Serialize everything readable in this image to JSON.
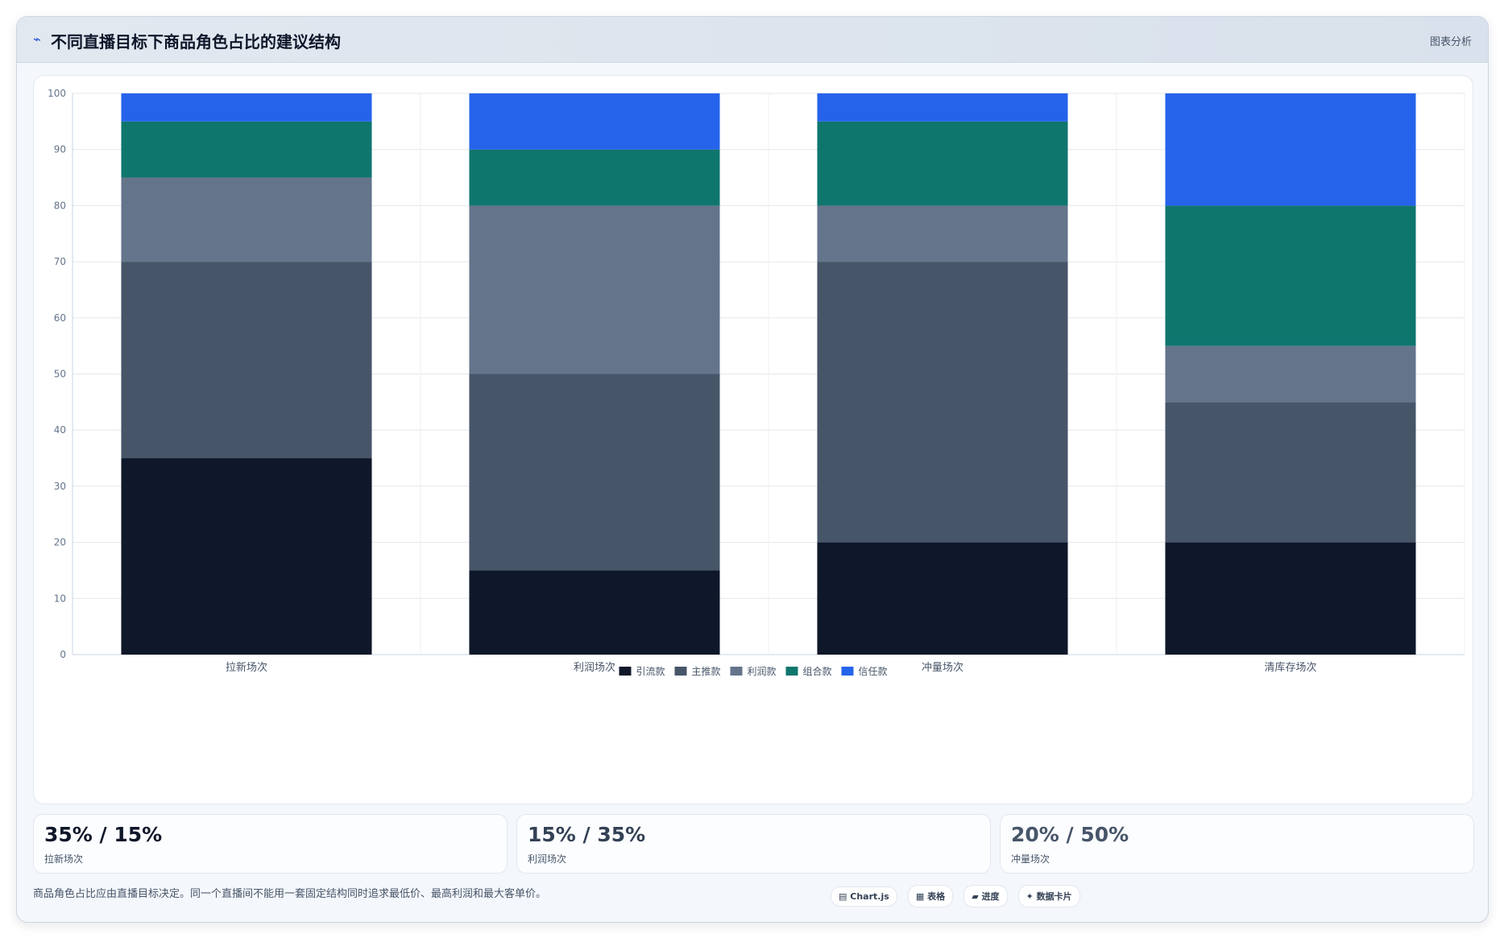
{
  "header": {
    "title_icon": "trend-icon",
    "title": "不同直播目标下商品角色占比的建议结构",
    "tag": "图表分析"
  },
  "chart_data": {
    "type": "bar",
    "stacked": true,
    "categories": [
      "拉新场次",
      "利润场次",
      "冲量场次",
      "清库存场次"
    ],
    "series": [
      {
        "name": "引流款",
        "values": [
          35,
          15,
          20,
          20
        ],
        "color": "#0f172a"
      },
      {
        "name": "主推款",
        "values": [
          35,
          35,
          50,
          25
        ],
        "color": "#475569"
      },
      {
        "name": "利润款",
        "values": [
          15,
          30,
          10,
          10
        ],
        "color": "#64748b"
      },
      {
        "name": "组合款",
        "values": [
          10,
          10,
          15,
          25
        ],
        "color": "#0f766e"
      },
      {
        "name": "信任款",
        "values": [
          5,
          10,
          5,
          20
        ],
        "color": "#2563eb"
      }
    ],
    "ylim": [
      0,
      100
    ],
    "yticks": [
      0,
      10,
      20,
      30,
      40,
      50,
      60,
      70,
      80,
      90,
      100
    ],
    "grid": true,
    "legend_position": "bottom"
  },
  "kpis": [
    {
      "value": "35% / 15%",
      "label": "拉新场次",
      "color": "#0f172a"
    },
    {
      "value": "15% / 35%",
      "label": "利润场次",
      "color": "#334155"
    },
    {
      "value": "20% / 50%",
      "label": "冲量场次",
      "color": "#475569"
    }
  ],
  "footnote": "商品角色占比应由直播目标决定。同一个直播间不能用一套固定结构同时追求最低价、最高利润和最大客单价。",
  "chips": [
    {
      "icon": "chart-icon",
      "symbol": "▤",
      "label": "Chart.js"
    },
    {
      "icon": "table-icon",
      "symbol": "▦",
      "label": "表格"
    },
    {
      "icon": "progress-icon",
      "symbol": "▰",
      "label": "进度"
    },
    {
      "icon": "card-icon",
      "symbol": "✦",
      "label": "数据卡片"
    }
  ]
}
